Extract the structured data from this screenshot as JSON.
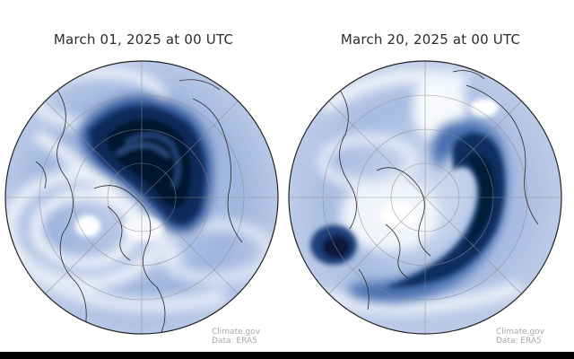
{
  "panels": [
    {
      "title": "March 01, 2025 at 00 UTC",
      "credit_source": "Climate.gov",
      "credit_data": "Data: ERA5"
    },
    {
      "title": "March 20, 2025 at 00 UTC",
      "credit_source": "Climate.gov",
      "credit_data": "Data: ERA5"
    }
  ],
  "colors": {
    "background": "#ffffff",
    "wind_low": "#f3f6fb",
    "wind_mid": "#8ea8d6",
    "wind_high": "#1b3f7a",
    "wind_max": "#061a38",
    "coastline": "#2a2a2a",
    "graticule": "#8a8a8a"
  }
}
